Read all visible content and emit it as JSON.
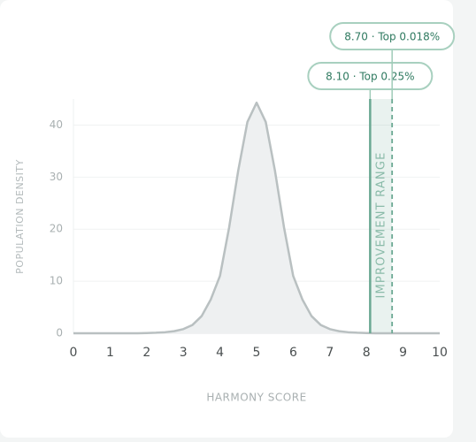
{
  "chart_data": {
    "type": "area",
    "x_label": "HARMONY SCORE",
    "y_label": "POPULATION DENSITY",
    "x": [
      0,
      0.25,
      0.5,
      0.75,
      1,
      1.25,
      1.5,
      1.75,
      2,
      2.25,
      2.5,
      2.75,
      3,
      3.25,
      3.5,
      3.75,
      4,
      4.25,
      4.5,
      4.75,
      5,
      5.25,
      5.5,
      5.75,
      6,
      6.25,
      6.5,
      6.75,
      7,
      7.25,
      7.5,
      7.75,
      8,
      8.25,
      8.5,
      8.75,
      9,
      9.25,
      9.5,
      9.75,
      10
    ],
    "values": [
      0,
      0,
      0,
      0,
      0,
      0,
      0,
      0.01,
      0.04,
      0.1,
      0.2,
      0.4,
      0.8,
      1.6,
      3.3,
      6.5,
      11.0,
      20.3,
      31.3,
      40.6,
      44.3,
      40.6,
      31.3,
      20.3,
      11.0,
      6.5,
      3.3,
      1.6,
      0.8,
      0.4,
      0.2,
      0.1,
      0.04,
      0.01,
      0,
      0,
      0,
      0,
      0,
      0,
      0
    ],
    "color": "#b9c0c1",
    "fill_color": "#eef0f1",
    "xlim": [
      0,
      10
    ],
    "xticks": [
      0,
      1,
      2,
      3,
      4,
      5,
      6,
      7,
      8,
      9,
      10
    ],
    "ylim": [
      0,
      45
    ],
    "yticks": [
      0,
      10,
      20,
      30,
      40
    ],
    "grid": true,
    "range": {
      "label": "IMPROVEMENT RANGE",
      "x": [
        8.1,
        8.7
      ],
      "color": "#6aa892"
    },
    "markers": [
      {
        "x": 8.1,
        "label": "8.10 · Top 0.25%",
        "style": "solid"
      },
      {
        "x": 8.7,
        "label": "8.70 · Top 0.018%",
        "style": "dashed"
      }
    ]
  }
}
